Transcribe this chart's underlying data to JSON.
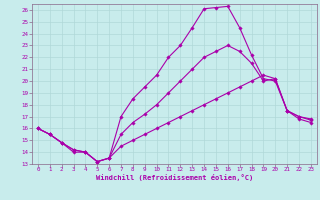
{
  "xlabel": "Windchill (Refroidissement éolien,°C)",
  "bg_color": "#c8ecec",
  "grid_color": "#b0d8d8",
  "line_color": "#aa00aa",
  "spine_color": "#886688",
  "xlim": [
    -0.5,
    23.5
  ],
  "ylim": [
    13,
    26.5
  ],
  "yticks": [
    13,
    14,
    15,
    16,
    17,
    18,
    19,
    20,
    21,
    22,
    23,
    24,
    25,
    26
  ],
  "xticks": [
    0,
    1,
    2,
    3,
    4,
    5,
    6,
    7,
    8,
    9,
    10,
    11,
    12,
    13,
    14,
    15,
    16,
    17,
    18,
    19,
    20,
    21,
    22,
    23
  ],
  "series": [
    {
      "x": [
        0,
        1,
        2,
        3,
        4,
        5,
        6,
        7,
        8,
        9,
        10,
        11,
        12,
        13,
        14,
        15,
        16,
        17,
        18,
        19,
        20,
        21,
        22,
        23
      ],
      "y": [
        16,
        15.5,
        14.8,
        14.0,
        14.0,
        13.2,
        13.5,
        17.0,
        18.5,
        19.5,
        20.5,
        22.0,
        23.0,
        24.5,
        26.1,
        26.2,
        26.3,
        24.5,
        22.2,
        20.2,
        20.0,
        17.5,
        17.0,
        16.7
      ]
    },
    {
      "x": [
        0,
        1,
        2,
        3,
        4,
        5,
        6,
        7,
        8,
        9,
        10,
        11,
        12,
        13,
        14,
        15,
        16,
        17,
        18,
        19,
        20,
        21,
        22,
        23
      ],
      "y": [
        16,
        15.5,
        14.8,
        14.2,
        14.0,
        13.2,
        13.5,
        15.5,
        16.5,
        17.2,
        18.0,
        19.0,
        20.0,
        21.0,
        22.0,
        22.5,
        23.0,
        22.5,
        21.5,
        20.0,
        20.2,
        17.5,
        16.8,
        16.5
      ]
    },
    {
      "x": [
        0,
        1,
        2,
        3,
        4,
        5,
        6,
        7,
        8,
        9,
        10,
        11,
        12,
        13,
        14,
        15,
        16,
        17,
        18,
        19,
        20,
        21,
        22,
        23
      ],
      "y": [
        16,
        15.5,
        14.8,
        14.2,
        14.0,
        13.2,
        13.5,
        14.5,
        15.0,
        15.5,
        16.0,
        16.5,
        17.0,
        17.5,
        18.0,
        18.5,
        19.0,
        19.5,
        20.0,
        20.5,
        20.2,
        17.5,
        17.0,
        16.8
      ]
    }
  ]
}
